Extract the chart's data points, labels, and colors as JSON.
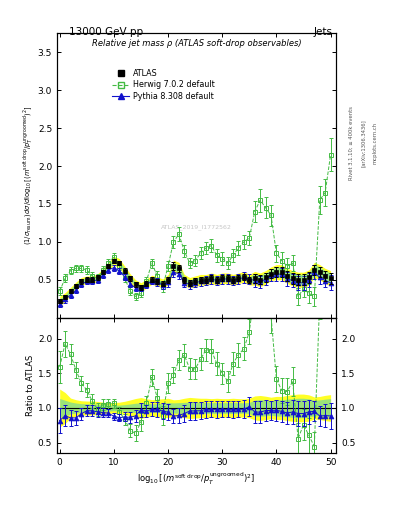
{
  "title_top": "13000 GeV pp",
  "title_right": "Jets",
  "plot_title": "Relative jet mass ρ (ATLAS soft-drop observables)",
  "ylabel_main": "$(1/\\sigma_{resum})$ $d\\sigma/d\\log_{10}[(m^{\\rm soft\\ drop}/p_T^{\\rm ungroomed})^2]$",
  "ylabel_ratio": "Ratio to ATLAS",
  "xlabel": "$\\log_{10}[(m^{\\rm soft\\ drop}/p_T^{\\rm ungroomed})^2]$",
  "watermark": "ATLAS_2019_I1772562",
  "ylim_main": [
    0.0,
    3.75
  ],
  "ylim_ratio": [
    0.35,
    2.3
  ],
  "yticks_main": [
    0.5,
    1.0,
    1.5,
    2.0,
    2.5,
    3.0,
    3.5
  ],
  "yticks_ratio": [
    0.5,
    1.0,
    1.5,
    2.0
  ],
  "xlim": [
    -0.5,
    51
  ],
  "x_atlas": [
    0,
    1,
    2,
    3,
    4,
    5,
    6,
    7,
    8,
    9,
    10,
    11,
    12,
    13,
    14,
    15,
    16,
    17,
    18,
    19,
    20,
    21,
    22,
    23,
    24,
    25,
    26,
    27,
    28,
    29,
    30,
    31,
    32,
    33,
    34,
    35,
    36,
    37,
    38,
    39,
    40,
    41,
    42,
    43,
    44,
    45,
    46,
    47,
    48,
    49,
    50
  ],
  "y_atlas": [
    0.22,
    0.27,
    0.35,
    0.42,
    0.48,
    0.5,
    0.5,
    0.53,
    0.6,
    0.68,
    0.75,
    0.72,
    0.62,
    0.52,
    0.44,
    0.4,
    0.45,
    0.5,
    0.48,
    0.45,
    0.5,
    0.68,
    0.65,
    0.5,
    0.46,
    0.48,
    0.5,
    0.5,
    0.52,
    0.5,
    0.52,
    0.52,
    0.5,
    0.52,
    0.54,
    0.5,
    0.52,
    0.5,
    0.53,
    0.58,
    0.6,
    0.6,
    0.55,
    0.52,
    0.5,
    0.5,
    0.53,
    0.63,
    0.6,
    0.55,
    0.52
  ],
  "y_atlas_stat": [
    0.03,
    0.03,
    0.03,
    0.03,
    0.03,
    0.03,
    0.03,
    0.03,
    0.03,
    0.03,
    0.03,
    0.03,
    0.03,
    0.03,
    0.03,
    0.03,
    0.03,
    0.03,
    0.03,
    0.03,
    0.04,
    0.05,
    0.05,
    0.04,
    0.04,
    0.04,
    0.04,
    0.04,
    0.04,
    0.04,
    0.04,
    0.04,
    0.04,
    0.04,
    0.04,
    0.04,
    0.06,
    0.06,
    0.06,
    0.06,
    0.07,
    0.07,
    0.07,
    0.07,
    0.07,
    0.07,
    0.07,
    0.07,
    0.07,
    0.07,
    0.07
  ],
  "y_atlas_syst": [
    0.06,
    0.06,
    0.05,
    0.05,
    0.05,
    0.05,
    0.05,
    0.05,
    0.05,
    0.05,
    0.06,
    0.06,
    0.06,
    0.06,
    0.06,
    0.06,
    0.06,
    0.06,
    0.06,
    0.06,
    0.07,
    0.08,
    0.08,
    0.07,
    0.07,
    0.07,
    0.07,
    0.07,
    0.07,
    0.07,
    0.07,
    0.07,
    0.07,
    0.07,
    0.07,
    0.07,
    0.09,
    0.09,
    0.09,
    0.09,
    0.1,
    0.1,
    0.1,
    0.1,
    0.1,
    0.1,
    0.1,
    0.1,
    0.1,
    0.1,
    0.1
  ],
  "x_herwig": [
    0,
    1,
    2,
    3,
    4,
    5,
    6,
    7,
    8,
    9,
    10,
    11,
    12,
    13,
    14,
    15,
    16,
    17,
    18,
    19,
    20,
    21,
    22,
    23,
    24,
    25,
    26,
    27,
    28,
    29,
    30,
    31,
    32,
    33,
    34,
    35,
    36,
    37,
    38,
    39,
    40,
    41,
    42,
    43,
    44,
    45,
    46,
    47,
    48,
    49,
    50
  ],
  "y_herwig": [
    0.35,
    0.52,
    0.62,
    0.65,
    0.65,
    0.63,
    0.55,
    0.52,
    0.63,
    0.72,
    0.8,
    0.68,
    0.52,
    0.35,
    0.28,
    0.32,
    0.48,
    0.72,
    0.55,
    0.4,
    0.68,
    1.0,
    1.1,
    0.88,
    0.72,
    0.75,
    0.85,
    0.92,
    0.95,
    0.82,
    0.78,
    0.72,
    0.82,
    0.92,
    1.0,
    1.05,
    1.4,
    1.55,
    1.45,
    1.35,
    0.85,
    0.75,
    0.68,
    0.72,
    0.28,
    0.38,
    0.32,
    0.28,
    1.55,
    1.65,
    2.15
  ],
  "y_herwig_err": [
    0.05,
    0.05,
    0.05,
    0.05,
    0.05,
    0.05,
    0.05,
    0.05,
    0.05,
    0.05,
    0.05,
    0.05,
    0.05,
    0.05,
    0.05,
    0.05,
    0.05,
    0.06,
    0.06,
    0.06,
    0.07,
    0.08,
    0.09,
    0.08,
    0.07,
    0.07,
    0.08,
    0.08,
    0.09,
    0.08,
    0.08,
    0.08,
    0.08,
    0.09,
    0.09,
    0.09,
    0.14,
    0.15,
    0.14,
    0.14,
    0.11,
    0.11,
    0.11,
    0.11,
    0.11,
    0.11,
    0.13,
    0.13,
    0.18,
    0.18,
    0.22
  ],
  "x_pythia": [
    0,
    1,
    2,
    3,
    4,
    5,
    6,
    7,
    8,
    9,
    10,
    11,
    12,
    13,
    14,
    15,
    16,
    17,
    18,
    19,
    20,
    21,
    22,
    23,
    24,
    25,
    26,
    27,
    28,
    29,
    30,
    31,
    32,
    33,
    34,
    35,
    36,
    37,
    38,
    39,
    40,
    41,
    42,
    43,
    44,
    45,
    46,
    47,
    48,
    49,
    50
  ],
  "y_pythia": [
    0.18,
    0.24,
    0.3,
    0.36,
    0.44,
    0.48,
    0.48,
    0.5,
    0.56,
    0.63,
    0.66,
    0.62,
    0.54,
    0.45,
    0.39,
    0.39,
    0.43,
    0.49,
    0.47,
    0.43,
    0.47,
    0.6,
    0.58,
    0.46,
    0.44,
    0.46,
    0.48,
    0.49,
    0.51,
    0.49,
    0.51,
    0.51,
    0.49,
    0.51,
    0.53,
    0.51,
    0.49,
    0.47,
    0.51,
    0.56,
    0.58,
    0.57,
    0.51,
    0.49,
    0.46,
    0.46,
    0.5,
    0.6,
    0.53,
    0.49,
    0.46
  ],
  "y_pythia_err": [
    0.04,
    0.04,
    0.04,
    0.04,
    0.04,
    0.04,
    0.04,
    0.04,
    0.04,
    0.04,
    0.04,
    0.04,
    0.04,
    0.04,
    0.04,
    0.04,
    0.04,
    0.05,
    0.05,
    0.05,
    0.06,
    0.07,
    0.07,
    0.06,
    0.06,
    0.06,
    0.06,
    0.06,
    0.06,
    0.06,
    0.06,
    0.06,
    0.06,
    0.06,
    0.07,
    0.07,
    0.08,
    0.08,
    0.08,
    0.08,
    0.09,
    0.09,
    0.09,
    0.09,
    0.09,
    0.09,
    0.09,
    0.09,
    0.09,
    0.09,
    0.1
  ],
  "color_atlas": "#000000",
  "color_herwig": "#44bb44",
  "color_pythia": "#1111cc",
  "color_band_yellow": "#ffff00",
  "color_band_green": "#88dd88",
  "xticks": [
    0,
    10,
    20,
    30,
    40,
    50
  ],
  "xtick_labels": [
    "0",
    "10",
    "20",
    "30",
    "40",
    "50"
  ],
  "right_labels": [
    "Rivet 3.1.10; ≥ 400k events",
    "[arXiv:1306.3436]",
    "mcplots.cern.ch"
  ]
}
